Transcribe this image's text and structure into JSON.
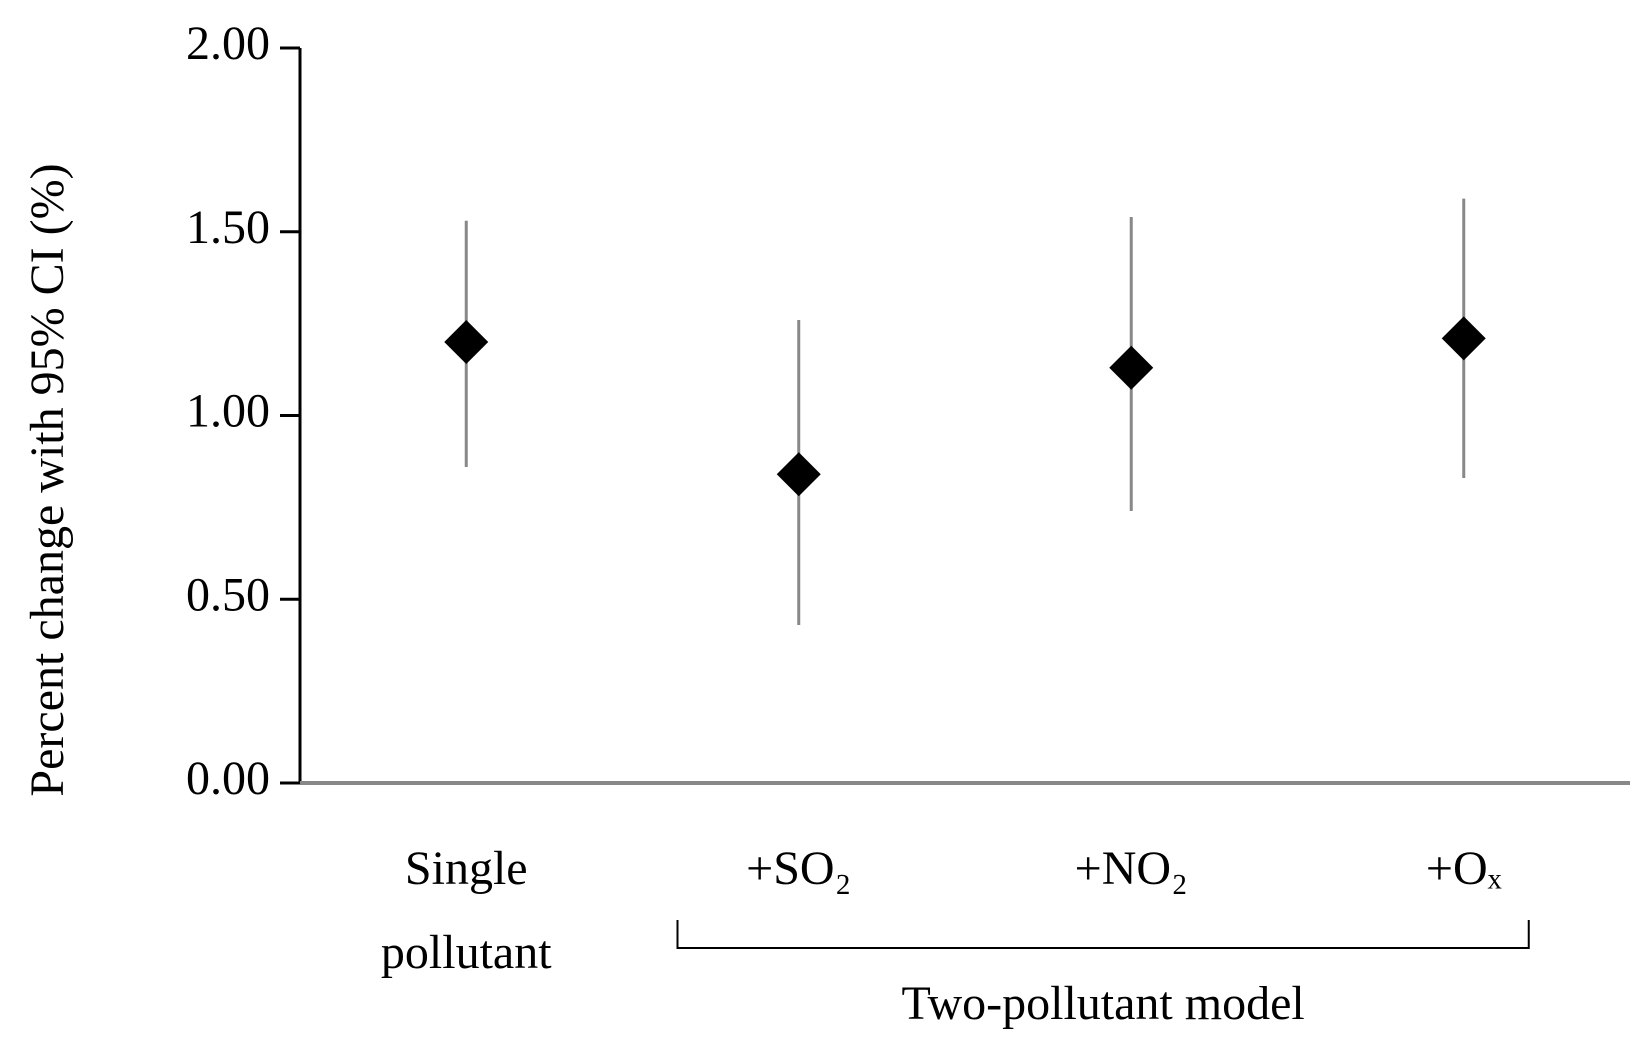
{
  "chart_data": {
    "type": "errorpoint",
    "y_label": "Percent change with 95% CI (%)",
    "categories": [
      "Single pollutant",
      "+SO₂",
      "+NO₂",
      "+Oₓ"
    ],
    "series": [
      {
        "color": "#000000",
        "error_color": "#888888",
        "values": [
          1.2,
          0.84,
          1.13,
          1.21
        ],
        "lower": [
          0.86,
          0.43,
          0.74,
          0.83
        ],
        "upper": [
          1.53,
          1.26,
          1.54,
          1.59
        ]
      }
    ],
    "annotation": "Two-pollutant model",
    "ylim": [
      0,
      2
    ],
    "yticks": [
      {
        "value": 0,
        "label": "0.00"
      },
      {
        "value": 0.5,
        "label": "0.50"
      },
      {
        "value": 1,
        "label": "1.00"
      },
      {
        "value": 1.5,
        "label": "1.50"
      },
      {
        "value": 2,
        "label": "2.00"
      }
    ],
    "grid": false
  }
}
